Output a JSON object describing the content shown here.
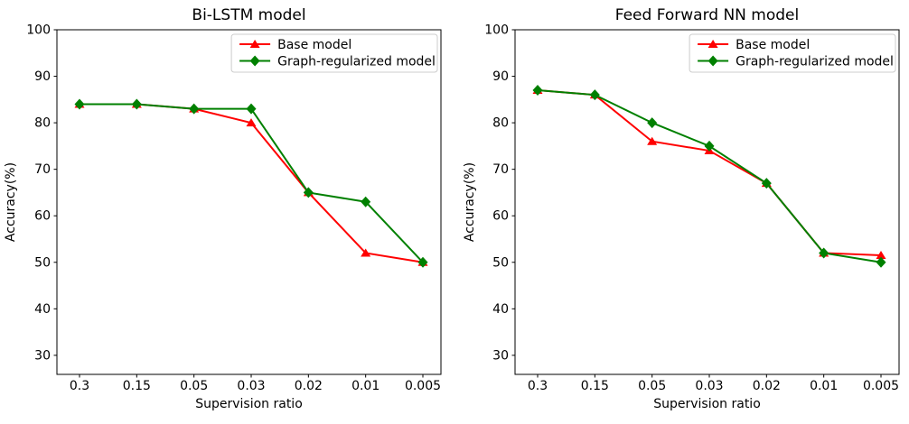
{
  "figure": {
    "background": "#ffffff",
    "axis_color": "#000000",
    "legend_border_color": "#cccccc",
    "legend_background": "#ffffff"
  },
  "chart_data": [
    {
      "type": "line",
      "title": "Bi-LSTM model",
      "xlabel": "Supervision ratio",
      "ylabel": "Accuracy(%)",
      "categories": [
        "0.3",
        "0.15",
        "0.05",
        "0.03",
        "0.02",
        "0.01",
        "0.005"
      ],
      "yticks": [
        30,
        40,
        50,
        60,
        70,
        80,
        90,
        100
      ],
      "ylim": [
        25.9,
        100
      ],
      "grid": false,
      "legend_position": "upper right",
      "series": [
        {
          "name": "Base model",
          "color": "#ff0000",
          "marker": "triangle",
          "values": [
            84,
            84,
            83,
            80,
            65,
            52,
            50
          ]
        },
        {
          "name": "Graph-regularized model",
          "color": "#008000",
          "marker": "diamond",
          "values": [
            84,
            84,
            83,
            83,
            65,
            63,
            50
          ]
        }
      ]
    },
    {
      "type": "line",
      "title": "Feed Forward NN model",
      "xlabel": "Supervision ratio",
      "ylabel": "Accuracy(%)",
      "categories": [
        "0.3",
        "0.15",
        "0.05",
        "0.03",
        "0.02",
        "0.01",
        "0.005"
      ],
      "yticks": [
        30,
        40,
        50,
        60,
        70,
        80,
        90,
        100
      ],
      "ylim": [
        25.9,
        100
      ],
      "grid": false,
      "legend_position": "upper right",
      "series": [
        {
          "name": "Base model",
          "color": "#ff0000",
          "marker": "triangle",
          "values": [
            87,
            86,
            76,
            74,
            67,
            52,
            51.5
          ]
        },
        {
          "name": "Graph-regularized model",
          "color": "#008000",
          "marker": "diamond",
          "values": [
            87,
            86,
            80,
            75,
            67,
            52,
            50
          ]
        }
      ]
    }
  ]
}
